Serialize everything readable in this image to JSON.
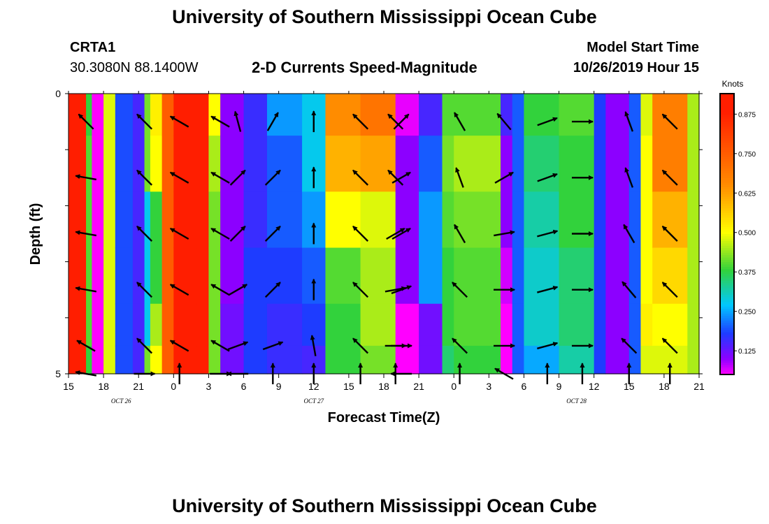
{
  "page": {
    "title": "University of Southern Mississippi Ocean Cube",
    "footer_title": "University of Southern Mississippi Ocean Cube",
    "station_id": "CRTA1",
    "station_coords": "30.3080N 88.1400W",
    "model_start_label": "Model Start Time",
    "model_start_value": "10/26/2019 Hour 15"
  },
  "chart_data": {
    "type": "heatmap",
    "title": "2-D Currents Speed-Magnitude",
    "xlabel": "Forecast Time(Z)",
    "ylabel": "Depth (ft)",
    "colorbar_label": "Knots",
    "colorbar_ticks": [
      "0.125",
      "0.250",
      "0.375",
      "0.500",
      "0.625",
      "0.750",
      "0.875"
    ],
    "colorbar_range": [
      0.05,
      0.94
    ],
    "colors": {
      "magenta": "#ff00ff",
      "violet": "#8c00ff",
      "blue": "#1e3cff",
      "cyan": "#00c8ff",
      "green": "#32d23c",
      "yellow": "#ffff00",
      "orange": "#ff8c00",
      "red": "#ff1e00"
    },
    "x_range_hours": [
      0,
      54
    ],
    "x_tick_labels": [
      "15",
      "18",
      "21",
      "0",
      "3",
      "6",
      "9",
      "12",
      "15",
      "18",
      "21",
      "0",
      "3",
      "6",
      "9",
      "12",
      "15",
      "18",
      "21"
    ],
    "date_labels": [
      {
        "text": "OCT 26",
        "hour": 4.5
      },
      {
        "text": "OCT 27",
        "hour": 21
      },
      {
        "text": "OCT 28",
        "hour": 43.5
      }
    ],
    "y_range_ft": [
      0,
      5
    ],
    "y_tick_labels": [
      "0",
      "5"
    ],
    "depth_rows_ft": [
      0.25,
      1.25,
      2.25,
      3.25,
      4.25,
      4.75
    ],
    "speed_columns": [
      {
        "hour": 0,
        "values": [
          0.9,
          0.9,
          0.9,
          0.9,
          0.9,
          0.9
        ]
      },
      {
        "hour": 1.5,
        "values": [
          0.38,
          0.4,
          0.4,
          0.4,
          0.4,
          0.38
        ]
      },
      {
        "hour": 2,
        "values": [
          0.05,
          0.05,
          0.05,
          0.05,
          0.05,
          0.05
        ]
      },
      {
        "hour": 3,
        "values": [
          0.48,
          0.48,
          0.48,
          0.48,
          0.48,
          0.48
        ]
      },
      {
        "hour": 4,
        "values": [
          0.19,
          0.19,
          0.19,
          0.19,
          0.19,
          0.19
        ]
      },
      {
        "hour": 5.5,
        "values": [
          0.15,
          0.15,
          0.15,
          0.15,
          0.15,
          0.15
        ]
      },
      {
        "hour": 6.5,
        "values": [
          0.42,
          0.42,
          0.28,
          0.28,
          0.28,
          0.42
        ]
      },
      {
        "hour": 7,
        "values": [
          0.52,
          0.5,
          0.38,
          0.38,
          0.45,
          0.5
        ]
      },
      {
        "hour": 8,
        "values": [
          0.75,
          0.75,
          0.75,
          0.75,
          0.75,
          0.75
        ]
      },
      {
        "hour": 9,
        "values": [
          0.9,
          0.9,
          0.9,
          0.9,
          0.9,
          0.9
        ]
      },
      {
        "hour": 11,
        "values": [
          0.88,
          0.88,
          0.88,
          0.88,
          0.88,
          0.88
        ]
      },
      {
        "hour": 12,
        "values": [
          0.5,
          0.45,
          0.42,
          0.42,
          0.42,
          0.42
        ]
      },
      {
        "hour": 13,
        "values": [
          0.1,
          0.1,
          0.1,
          0.1,
          0.12,
          0.12
        ]
      },
      {
        "hour": 15,
        "values": [
          0.16,
          0.16,
          0.16,
          0.18,
          0.18,
          0.18
        ]
      },
      {
        "hour": 17,
        "values": [
          0.24,
          0.2,
          0.2,
          0.18,
          0.16,
          0.16
        ]
      },
      {
        "hour": 20,
        "values": [
          0.28,
          0.28,
          0.24,
          0.2,
          0.18,
          0.15
        ]
      },
      {
        "hour": 22,
        "values": [
          0.65,
          0.6,
          0.5,
          0.4,
          0.38,
          0.38
        ]
      },
      {
        "hour": 25,
        "values": [
          0.7,
          0.62,
          0.48,
          0.45,
          0.45,
          0.42
        ]
      },
      {
        "hour": 28,
        "values": [
          0.06,
          0.1,
          0.1,
          0.1,
          0.05,
          0.05
        ]
      },
      {
        "hour": 30,
        "values": [
          0.15,
          0.2,
          0.24,
          0.24,
          0.12,
          0.12
        ]
      },
      {
        "hour": 32,
        "values": [
          0.4,
          0.42,
          0.4,
          0.38,
          0.38,
          0.35
        ]
      },
      {
        "hour": 33,
        "values": [
          0.4,
          0.45,
          0.42,
          0.4,
          0.4,
          0.38
        ]
      },
      {
        "hour": 37,
        "values": [
          0.15,
          0.1,
          0.1,
          0.07,
          0.05,
          0.05
        ]
      },
      {
        "hour": 38,
        "values": [
          0.2,
          0.2,
          0.2,
          0.2,
          0.2,
          0.2
        ]
      },
      {
        "hour": 39,
        "values": [
          0.38,
          0.35,
          0.32,
          0.3,
          0.3,
          0.25
        ]
      },
      {
        "hour": 42,
        "values": [
          0.4,
          0.38,
          0.38,
          0.35,
          0.35,
          0.32
        ]
      },
      {
        "hour": 45,
        "values": [
          0.18,
          0.18,
          0.18,
          0.18,
          0.18,
          0.18
        ]
      },
      {
        "hour": 46,
        "values": [
          0.1,
          0.1,
          0.1,
          0.1,
          0.1,
          0.1
        ]
      },
      {
        "hour": 48,
        "values": [
          0.2,
          0.2,
          0.2,
          0.2,
          0.2,
          0.2
        ]
      },
      {
        "hour": 49,
        "values": [
          0.48,
          0.5,
          0.5,
          0.5,
          0.52,
          0.48
        ]
      },
      {
        "hour": 50,
        "values": [
          0.68,
          0.68,
          0.6,
          0.55,
          0.5,
          0.48
        ]
      },
      {
        "hour": 53,
        "values": [
          0.45,
          0.45,
          0.45,
          0.45,
          0.45,
          0.45
        ]
      }
    ],
    "vector_rows_ft": [
      0.5,
      1.5,
      2.5,
      3.5,
      4.5,
      5.0
    ],
    "vector_columns": [
      {
        "hour": 1.5,
        "dirs": [
          315,
          280,
          280,
          280,
          300,
          280
        ]
      },
      {
        "hour": 6.5,
        "dirs": [
          315,
          315,
          315,
          315,
          315,
          90
        ]
      },
      {
        "hour": 9.5,
        "dirs": [
          300,
          300,
          300,
          300,
          300,
          0
        ]
      },
      {
        "hour": 13,
        "dirs": [
          300,
          300,
          300,
          300,
          300,
          90
        ]
      },
      {
        "hour": 14.5,
        "dirs": [
          345,
          45,
          45,
          60,
          70,
          270
        ]
      },
      {
        "hour": 17.5,
        "dirs": [
          30,
          45,
          45,
          45,
          70,
          0
        ]
      },
      {
        "hour": 21,
        "dirs": [
          0,
          0,
          0,
          0,
          350,
          0
        ]
      },
      {
        "hour": 25,
        "dirs": [
          315,
          315,
          315,
          315,
          315,
          0
        ]
      },
      {
        "hour": 28,
        "dirs": [
          315,
          315,
          60,
          80,
          90,
          0
        ]
      },
      {
        "hour": 28.5,
        "dirs": [
          45,
          60,
          60,
          70,
          90,
          270
        ]
      },
      {
        "hour": 33.5,
        "dirs": [
          330,
          340,
          330,
          315,
          315,
          0
        ]
      },
      {
        "hour": 37.3,
        "dirs": [
          320,
          60,
          80,
          90,
          90,
          300
        ]
      },
      {
        "hour": 41,
        "dirs": [
          70,
          70,
          75,
          75,
          75,
          0
        ]
      },
      {
        "hour": 44,
        "dirs": [
          90,
          90,
          90,
          90,
          90,
          0
        ]
      },
      {
        "hour": 48,
        "dirs": [
          340,
          340,
          330,
          320,
          315,
          0
        ]
      },
      {
        "hour": 51.5,
        "dirs": [
          315,
          315,
          315,
          315,
          315,
          0
        ]
      }
    ]
  }
}
